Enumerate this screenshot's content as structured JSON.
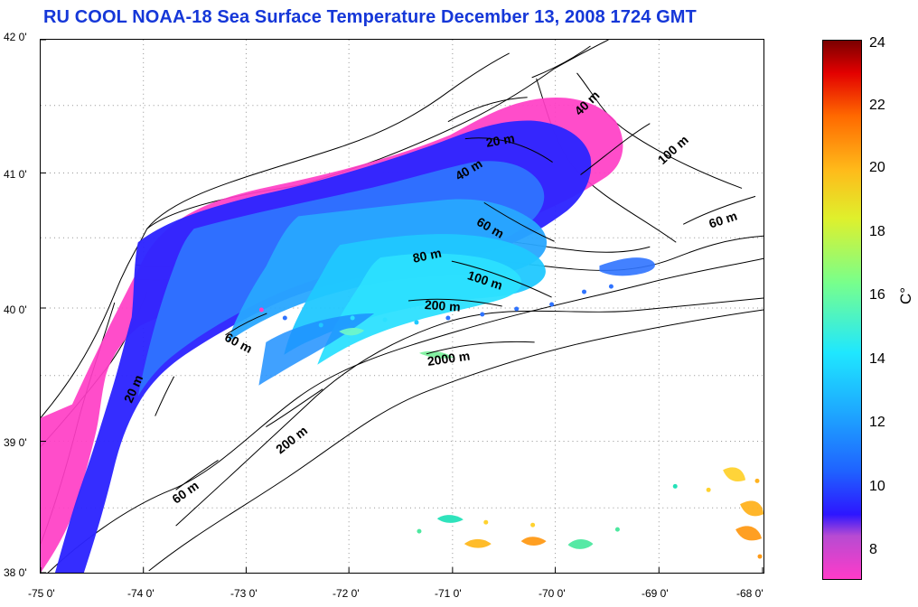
{
  "title": "RU COOL  NOAA-18 Sea Surface Temperature December 13, 2008 1724 GMT",
  "y_axis": {
    "ticks": [
      "42 0'",
      "41 0'",
      "40 0'",
      "39 0'",
      "38 0'"
    ]
  },
  "x_axis": {
    "ticks": [
      "-75 0'",
      "-74 0'",
      "-73 0'",
      "-72 0'",
      "-71 0'",
      "-70 0'",
      "-69 0'",
      "-68 0'"
    ]
  },
  "colorbar": {
    "ticks": [
      "24",
      "22",
      "20",
      "18",
      "16",
      "14",
      "12",
      "10",
      "8"
    ],
    "unit": "C°"
  },
  "map_annotations": {
    "a20_east": "20 m",
    "a40_east": "40 m",
    "a40_south": "40 m",
    "a60_center": "60 m",
    "a80": "80 m",
    "a100_center": "100 m",
    "a100_east": "100 m",
    "a60_east": "60 m",
    "a200_center": "200 m",
    "a2000": "2000 m",
    "a200_west": "200 m",
    "a60_west": "60 m",
    "a20_west": "20 m",
    "a60_south": "60 m"
  },
  "colors": {
    "title": "#1537d8",
    "land_pink": "#ff3ec6",
    "blue_cold": "#2419ff",
    "blue_mid": "#2f73ff",
    "cyan": "#21c9ff",
    "teal": "#29e0d0",
    "warm_yellow": "#f3cf24",
    "warm_orange": "#ff9b19"
  }
}
